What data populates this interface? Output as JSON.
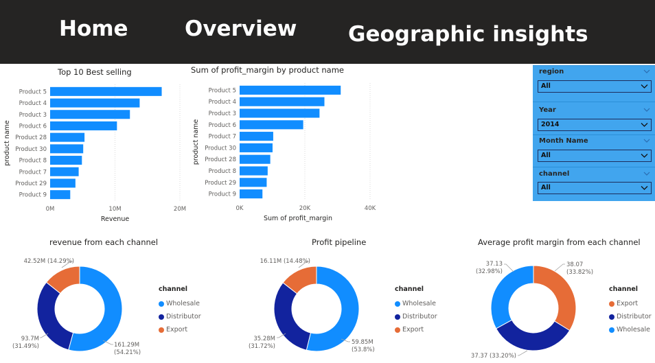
{
  "nav": {
    "home": "Home",
    "overview": "Overview",
    "geo": "Geographic insights"
  },
  "colors": {
    "blue": "#118dff",
    "navy": "#12239e",
    "orange": "#e66c37",
    "slicer_bg": "#41a5ee",
    "topbar": "#252423"
  },
  "slicers": [
    {
      "label": "region",
      "value": "All"
    },
    {
      "label": "Year",
      "value": "2014"
    },
    {
      "label": "Month Name",
      "value": "All"
    },
    {
      "label": "channel",
      "value": "All"
    }
  ],
  "chart_data": [
    {
      "type": "bar",
      "title": "Top 10 Best selling",
      "xlabel": "Revenue",
      "ylabel": "product name",
      "categories": [
        "Product 5",
        "Product 4",
        "Product 3",
        "Product 6",
        "Product 28",
        "Product 30",
        "Product 8",
        "Product 7",
        "Product 29",
        "Product 9"
      ],
      "values": [
        17.2,
        13.8,
        12.3,
        10.3,
        5.3,
        5.1,
        4.9,
        4.4,
        3.9,
        3.1
      ],
      "xticks": [
        "0M",
        "10M",
        "20M"
      ],
      "xlim": [
        0,
        20
      ]
    },
    {
      "type": "bar",
      "title": "Sum of profit_margin by product name",
      "xlabel": "Sum of profit_margin",
      "ylabel": "product name",
      "categories": [
        "Product 5",
        "Product 4",
        "Product 3",
        "Product 6",
        "Product 7",
        "Product 30",
        "Product 28",
        "Product 8",
        "Product 29",
        "Product 9"
      ],
      "values": [
        31000,
        26000,
        24500,
        19500,
        10300,
        10100,
        9400,
        8600,
        8300,
        7000
      ],
      "xticks": [
        "0K",
        "20K",
        "40K"
      ],
      "xlim": [
        0,
        40000
      ]
    },
    {
      "type": "pie",
      "title": "revenue from each channel",
      "legend_title": "channel",
      "series": [
        {
          "name": "Wholesale",
          "value": 161.29,
          "label1": "161.29M",
          "label2": "(54.21%)",
          "color": "#118dff"
        },
        {
          "name": "Distributor",
          "value": 93.7,
          "label1": "93.7M",
          "label2": "(31.49%)",
          "color": "#12239e"
        },
        {
          "name": "Export",
          "value": 42.52,
          "label1": "42.52M (14.29%)",
          "label2": "",
          "color": "#e66c37"
        }
      ]
    },
    {
      "type": "pie",
      "title": "Profit pipeline",
      "legend_title": "channel",
      "series": [
        {
          "name": "Wholesale",
          "value": 59.85,
          "label1": "59.85M",
          "label2": "(53.8%)",
          "color": "#118dff"
        },
        {
          "name": "Distributor",
          "value": 35.28,
          "label1": "35.28M",
          "label2": "(31.72%)",
          "color": "#12239e"
        },
        {
          "name": "Export",
          "value": 16.11,
          "label1": "16.11M (14.48%)",
          "label2": "",
          "color": "#e66c37"
        }
      ]
    },
    {
      "type": "pie",
      "title": "Average profit margin from each channel",
      "legend_title": "channel",
      "series": [
        {
          "name": "Export",
          "value": 38.07,
          "label1": "38.07",
          "label2": "(33.82%)",
          "color": "#e66c37"
        },
        {
          "name": "Distributor",
          "value": 37.37,
          "label1": "37.37 (33.20%)",
          "label2": "",
          "color": "#12239e"
        },
        {
          "name": "Wholesale",
          "value": 37.13,
          "label1": "37.13",
          "label2": "(32.98%)",
          "color": "#118dff"
        }
      ]
    }
  ]
}
